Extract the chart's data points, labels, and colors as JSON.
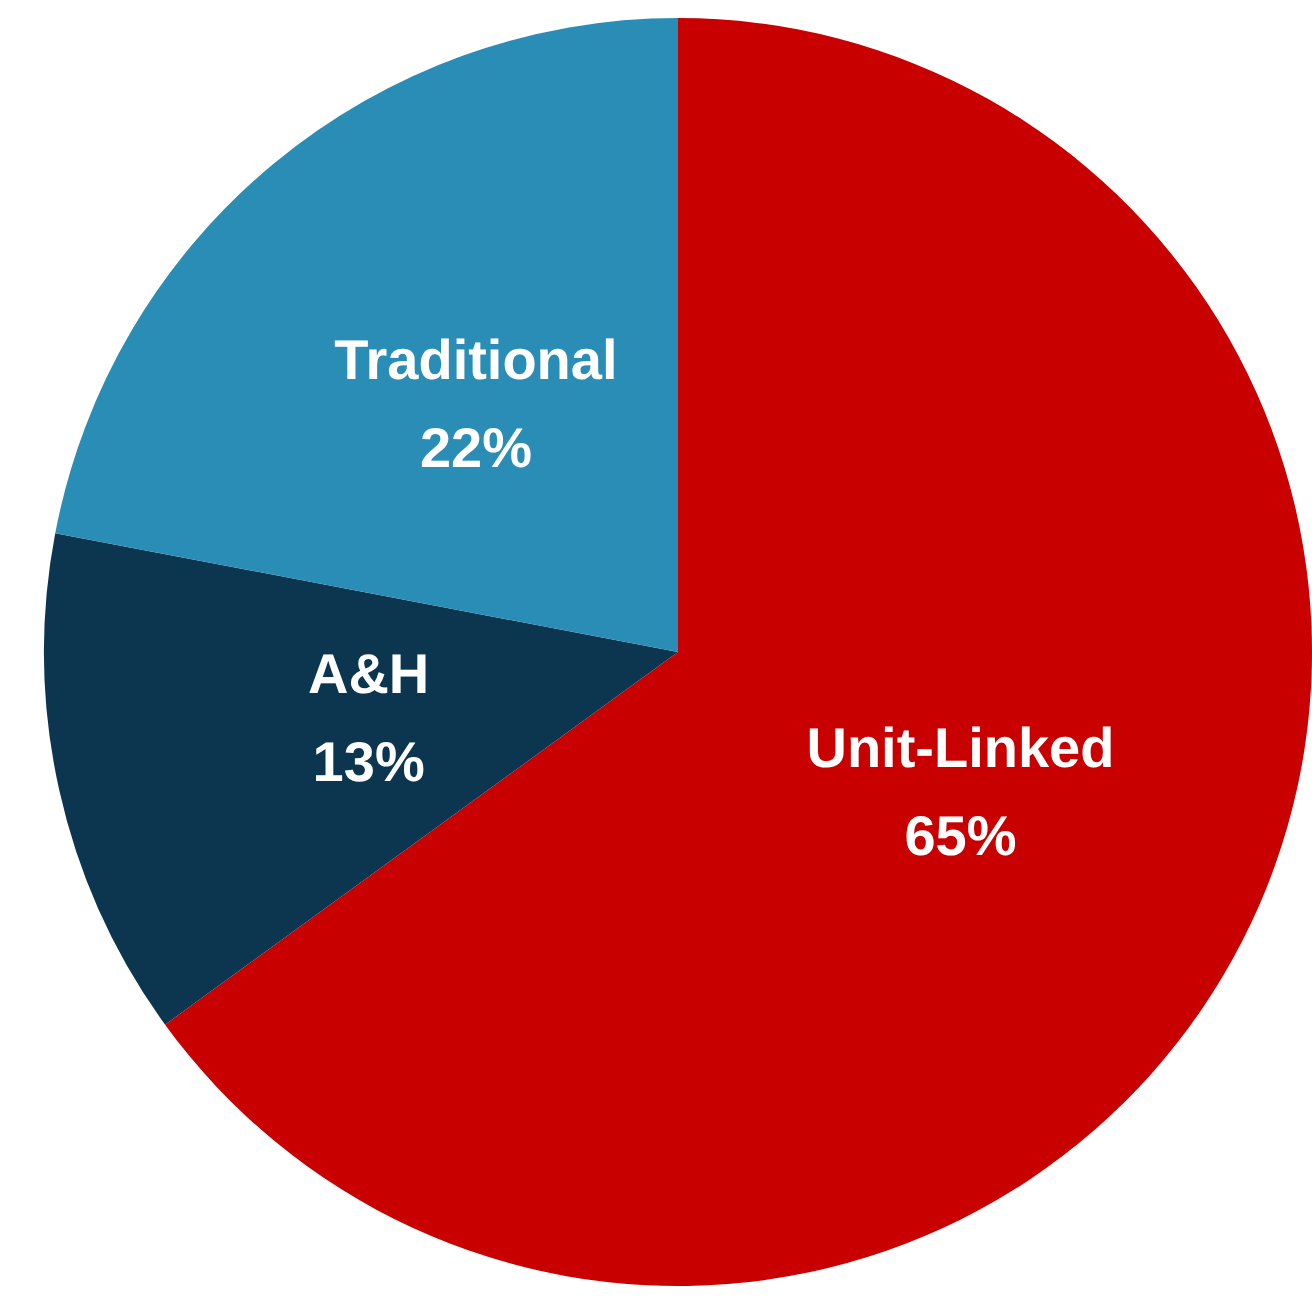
{
  "chart_data": {
    "type": "pie",
    "categories": [
      "Unit-Linked",
      "A&H",
      "Traditional"
    ],
    "values": [
      65,
      13,
      22
    ],
    "value_labels": [
      "65%",
      "13%",
      "22%"
    ],
    "colors": [
      "#c80000",
      "#0c3550",
      "#2a8db5"
    ],
    "legend": false
  }
}
